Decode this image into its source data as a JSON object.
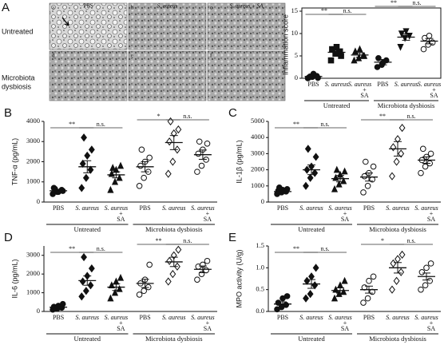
{
  "panel_a": {
    "letter": "A",
    "columns": [
      "PBS",
      "S. aureus",
      "S. aureus + SA"
    ],
    "rows": [
      [
        "Untreated"
      ],
      [
        "Microbiota",
        "dysbiosis"
      ]
    ],
    "images": [
      "a",
      "b",
      "c",
      "d",
      "e",
      "f"
    ]
  },
  "chart_data": [
    {
      "type": "dotplot",
      "ylabel": "Inflammation score",
      "frame": true,
      "categories": [
        [
          "PBS"
        ],
        [
          "S. aureus"
        ],
        [
          "S. aureus",
          "+",
          "SA"
        ],
        [
          "PBS"
        ],
        [
          "S. aureus"
        ],
        [
          "S. aureus",
          "+",
          "SA"
        ]
      ],
      "groups": [
        "Untreated",
        "Microbiota dysbiosis"
      ],
      "markers": [
        [
          "circle",
          true
        ],
        [
          "square",
          true
        ],
        [
          "triangle",
          true
        ],
        [
          "circle",
          true
        ],
        [
          "triangle-down",
          true
        ],
        [
          "circle",
          false
        ]
      ],
      "points": [
        [
          0,
          0.3,
          0.5,
          0.2,
          1,
          0.1,
          0.4
        ],
        [
          4,
          5.5,
          6,
          6.5,
          7,
          5
        ],
        [
          4,
          4.5,
          5,
          6,
          6.5,
          5
        ],
        [
          2.5,
          3,
          4,
          4.5,
          3.5
        ],
        [
          7,
          9,
          9.5,
          10,
          10.5
        ],
        [
          6.5,
          7.5,
          8,
          9,
          9.5
        ]
      ],
      "means": [
        0.4,
        5.8,
        5.2,
        3.6,
        9.2,
        8.3
      ],
      "errors": [
        0.2,
        0.5,
        0.5,
        0.6,
        0.7,
        0.6
      ],
      "ylim": [
        0,
        15
      ],
      "yticks": [
        0,
        5,
        10,
        15
      ],
      "annotations": [
        {
          "from": 0,
          "to": 1,
          "label": "**"
        },
        {
          "from": 1,
          "to": 2,
          "label": "n.s."
        },
        {
          "from": 3,
          "to": 4,
          "label": "**"
        },
        {
          "from": 4,
          "to": 5,
          "label": "n.s."
        }
      ]
    },
    {
      "type": "dotplot",
      "panel": "B",
      "ylabel": "TNF-α (pg/mL)",
      "categories": [
        [
          "PBS"
        ],
        [
          "S. aureus"
        ],
        [
          "S. aureus",
          "+",
          "SA"
        ],
        [
          "PBS"
        ],
        [
          "S. aureus"
        ],
        [
          "S. aureus",
          "+",
          "SA"
        ]
      ],
      "groups": [
        "Untreated",
        "Microbiota dysbiosis"
      ],
      "markers": [
        [
          "circle",
          true
        ],
        [
          "diamond",
          true
        ],
        [
          "triangle",
          true
        ],
        [
          "circle",
          false
        ],
        [
          "diamond",
          false
        ],
        [
          "circle",
          false
        ]
      ],
      "points": [
        [
          400,
          500,
          600,
          700,
          500,
          550,
          650
        ],
        [
          700,
          1200,
          1600,
          1900,
          2300,
          2600,
          3200
        ],
        [
          600,
          1000,
          1200,
          1400,
          1600,
          1800,
          1700
        ],
        [
          800,
          1200,
          1500,
          1800,
          2000,
          2200,
          2600
        ],
        [
          1400,
          2000,
          2600,
          3000,
          3400,
          3600,
          4000
        ],
        [
          1500,
          1800,
          2100,
          2400,
          2600,
          2900,
          3000
        ]
      ],
      "means": [
        560,
        1750,
        1350,
        1750,
        2950,
        2350
      ],
      "errors": [
        60,
        300,
        150,
        250,
        350,
        230
      ],
      "ylim": [
        0,
        4000
      ],
      "yticks": [
        0,
        1000,
        2000,
        3000,
        4000
      ],
      "annotations": [
        {
          "from": 0,
          "to": 1,
          "label": "**"
        },
        {
          "from": 1,
          "to": 2,
          "label": "n.s."
        },
        {
          "from": 3,
          "to": 4,
          "label": "*"
        },
        {
          "from": 4,
          "to": 5,
          "label": "n.s."
        }
      ]
    },
    {
      "type": "dotplot",
      "panel": "C",
      "ylabel": "IL-1β (pg/mL)",
      "categories": [
        [
          "PBS"
        ],
        [
          "S. aureus"
        ],
        [
          "S. aureus",
          "+",
          "SA"
        ],
        [
          "PBS"
        ],
        [
          "S. aureus"
        ],
        [
          "S. aureus",
          "+",
          "SA"
        ]
      ],
      "groups": [
        "Untreated",
        "Microbiota dysbiosis"
      ],
      "markers": [
        [
          "circle",
          true
        ],
        [
          "diamond",
          true
        ],
        [
          "triangle",
          true
        ],
        [
          "circle",
          false
        ],
        [
          "diamond",
          false
        ],
        [
          "circle",
          false
        ]
      ],
      "points": [
        [
          500,
          600,
          650,
          700,
          750,
          800,
          900
        ],
        [
          1000,
          1500,
          1800,
          2000,
          2200,
          2800,
          3300
        ],
        [
          800,
          1100,
          1300,
          1500,
          1700,
          1900,
          2000
        ],
        [
          600,
          1000,
          1400,
          1600,
          1800,
          2200,
          2500
        ],
        [
          1600,
          2500,
          3000,
          3400,
          3900,
          4600
        ],
        [
          1800,
          2200,
          2400,
          2600,
          2800,
          3000,
          3300
        ]
      ],
      "means": [
        650,
        2000,
        1450,
        1550,
        3300,
        2600
      ],
      "errors": [
        60,
        300,
        200,
        250,
        450,
        200
      ],
      "ylim": [
        0,
        5000
      ],
      "yticks": [
        0,
        1000,
        2000,
        3000,
        4000,
        5000
      ],
      "annotations": [
        {
          "from": 0,
          "to": 1,
          "label": "**"
        },
        {
          "from": 1,
          "to": 2,
          "label": "n.s."
        },
        {
          "from": 3,
          "to": 4,
          "label": "**"
        },
        {
          "from": 4,
          "to": 5,
          "label": "n.s."
        }
      ]
    },
    {
      "type": "dotplot",
      "panel": "D",
      "ylabel": "IL-6 (pg/mL)",
      "categories": [
        [
          "PBS"
        ],
        [
          "S. aureus"
        ],
        [
          "S. aureus",
          "+",
          "SA"
        ],
        [
          "PBS"
        ],
        [
          "S. aureus"
        ],
        [
          "S. aureus",
          "+",
          "SA"
        ]
      ],
      "groups": [
        "Untreated",
        "Microbiota dysbiosis"
      ],
      "markers": [
        [
          "circle",
          true
        ],
        [
          "diamond",
          true
        ],
        [
          "triangle",
          true
        ],
        [
          "circle",
          false
        ],
        [
          "diamond",
          false
        ],
        [
          "circle",
          false
        ]
      ],
      "points": [
        [
          100,
          150,
          200,
          250,
          300,
          400,
          200
        ],
        [
          800,
          1100,
          1400,
          1600,
          1900,
          2300,
          2900
        ],
        [
          700,
          1000,
          1200,
          1400,
          1600,
          1800
        ],
        [
          900,
          1100,
          1300,
          1500,
          1700,
          2500
        ],
        [
          1600,
          2000,
          2400,
          2700,
          3000,
          3300
        ],
        [
          1700,
          2000,
          2200,
          2400,
          2500,
          2700
        ]
      ],
      "means": [
        230,
        1650,
        1300,
        1500,
        2650,
        2250
      ],
      "errors": [
        50,
        250,
        180,
        220,
        250,
        180
      ],
      "ylim": [
        0,
        3500
      ],
      "yticks": [
        0,
        1000,
        2000,
        3000
      ],
      "annotations": [
        {
          "from": 0,
          "to": 1,
          "label": "**"
        },
        {
          "from": 1,
          "to": 2,
          "label": "n.s."
        },
        {
          "from": 3,
          "to": 4,
          "label": "**"
        },
        {
          "from": 4,
          "to": 5,
          "label": "n.s."
        }
      ]
    },
    {
      "type": "dotplot",
      "panel": "E",
      "ylabel": "MPO activity (U/g)",
      "categories": [
        [
          "PBS"
        ],
        [
          "S. aureus"
        ],
        [
          "S. aureus",
          "+",
          "SA"
        ],
        [
          "PBS"
        ],
        [
          "S. aureus"
        ],
        [
          "S. aureus",
          "+",
          "SA"
        ]
      ],
      "groups": [
        "Untreated",
        "Microbiota dysbiosis"
      ],
      "markers": [
        [
          "circle",
          true
        ],
        [
          "diamond",
          true
        ],
        [
          "triangle",
          true
        ],
        [
          "circle",
          false
        ],
        [
          "diamond",
          false
        ],
        [
          "circle",
          false
        ]
      ],
      "points": [
        [
          0.05,
          0.1,
          0.15,
          0.2,
          0.3,
          0.35
        ],
        [
          0.3,
          0.4,
          0.6,
          0.7,
          0.8,
          1.0
        ],
        [
          0.3,
          0.4,
          0.45,
          0.5,
          0.6,
          0.7
        ],
        [
          0.2,
          0.3,
          0.45,
          0.55,
          0.7,
          0.8
        ],
        [
          0.5,
          0.7,
          0.9,
          1.1,
          1.2,
          1.3
        ],
        [
          0.5,
          0.6,
          0.7,
          0.9,
          1.0,
          1.1
        ]
      ],
      "means": [
        0.17,
        0.63,
        0.48,
        0.5,
        1.0,
        0.8
      ],
      "errors": [
        0.05,
        0.1,
        0.06,
        0.08,
        0.12,
        0.08
      ],
      "ylim": [
        0,
        1.5
      ],
      "yticks": [
        {
          "value": 0,
          "label": "0.0"
        },
        0.5,
        {
          "value": 1,
          "label": "1.0"
        },
        1.5
      ],
      "annotations": [
        {
          "from": 0,
          "to": 1,
          "label": "**"
        },
        {
          "from": 1,
          "to": 2,
          "label": "n.s."
        },
        {
          "from": 3,
          "to": 4,
          "label": "*"
        },
        {
          "from": 4,
          "to": 5,
          "label": "n.s."
        }
      ]
    }
  ]
}
